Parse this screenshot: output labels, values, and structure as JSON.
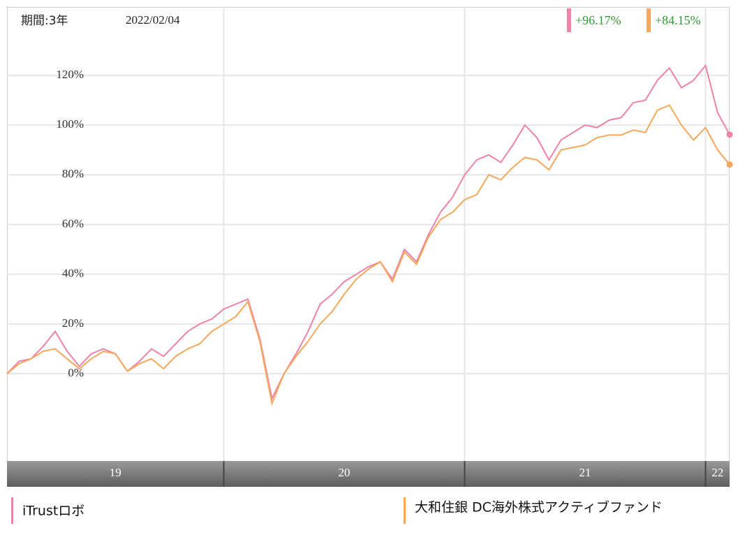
{
  "chart_data": {
    "type": "line",
    "period_label": "期間:3年",
    "date": "2022/02/04",
    "x": [
      19.1,
      19.15,
      19.2,
      19.25,
      19.3,
      19.35,
      19.4,
      19.45,
      19.5,
      19.55,
      19.6,
      19.65,
      19.7,
      19.75,
      19.8,
      19.85,
      19.9,
      19.95,
      20.0,
      20.05,
      20.1,
      20.15,
      20.2,
      20.25,
      20.3,
      20.35,
      20.4,
      20.45,
      20.5,
      20.55,
      20.6,
      20.65,
      20.7,
      20.75,
      20.8,
      20.85,
      20.9,
      20.95,
      21.0,
      21.05,
      21.1,
      21.15,
      21.2,
      21.25,
      21.3,
      21.35,
      21.4,
      21.45,
      21.5,
      21.55,
      21.6,
      21.65,
      21.7,
      21.75,
      21.8,
      21.85,
      21.9,
      21.95,
      22.0,
      22.05,
      22.1
    ],
    "xlim": [
      19.1,
      22.1
    ],
    "xticks": [
      19,
      20,
      21,
      22
    ],
    "ylim": [
      -35.1,
      147.5
    ],
    "yticks": [
      {
        "value": 0,
        "label": "0%"
      },
      {
        "value": 20,
        "label": "20%"
      },
      {
        "value": 40,
        "label": "40%"
      },
      {
        "value": 60,
        "label": "60%"
      },
      {
        "value": 80,
        "label": "80%"
      },
      {
        "value": 100,
        "label": "100%"
      },
      {
        "value": 120,
        "label": "120%"
      }
    ],
    "grid": true,
    "series": [
      {
        "name": "iTrustロボ",
        "color": "#ef82aa",
        "latest_label": "+96.17%",
        "values": [
          0,
          5,
          6,
          11,
          17,
          9,
          3,
          8,
          10,
          8,
          1,
          5,
          10,
          7,
          12,
          17,
          20,
          22,
          26,
          28,
          30,
          14,
          -10,
          0,
          8,
          17,
          28,
          32,
          37,
          40,
          43,
          45,
          38,
          50,
          45,
          56,
          65,
          71,
          80,
          86,
          88,
          85,
          92,
          100,
          95,
          86,
          94,
          97,
          100,
          99,
          102,
          103,
          109,
          110,
          118,
          123,
          115,
          118,
          124,
          105,
          96.17
        ]
      },
      {
        "name": "大和住銀 DC海外株式アクティブファンド",
        "color": "#f5a85a",
        "latest_label": "+84.15%",
        "values": [
          0,
          4,
          6,
          9,
          10,
          6,
          2,
          6,
          9,
          8,
          1,
          4,
          6,
          2,
          7,
          10,
          12,
          17,
          20,
          23,
          29,
          13,
          -12,
          0,
          7,
          13,
          20,
          25,
          32,
          38,
          42,
          45,
          37,
          49,
          44,
          55,
          62,
          65,
          70,
          72,
          80,
          78,
          83,
          87,
          86,
          82,
          90,
          91,
          92,
          95,
          96,
          96,
          98,
          97,
          106,
          108,
          100,
          94,
          99,
          90,
          84.15
        ]
      }
    ]
  }
}
